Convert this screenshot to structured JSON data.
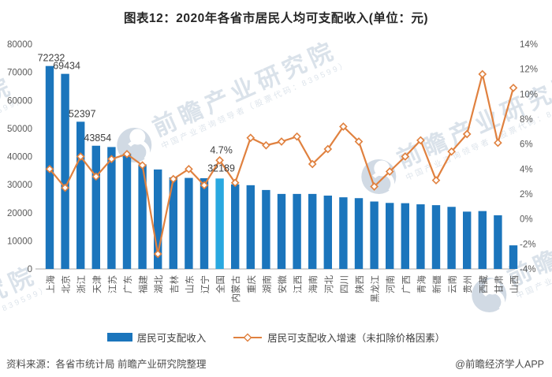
{
  "title": "图表12：2020年各省市居民人均可支配收入(单位：元)",
  "chart_data": {
    "type": "bar",
    "combo": "bar+line",
    "categories": [
      "上海",
      "北京",
      "浙江",
      "天津",
      "江苏",
      "广东",
      "福建",
      "湖北",
      "吉林",
      "山东",
      "辽宁",
      "全国",
      "内蒙古",
      "重庆",
      "湖南",
      "安徽",
      "江西",
      "海南",
      "河北",
      "四川",
      "陕西",
      "黑龙江",
      "河南",
      "广西",
      "青海",
      "新疆",
      "云南",
      "贵州",
      "西藏",
      "甘肃",
      "山西"
    ],
    "series": [
      {
        "name": "居民可支配收入",
        "type": "bar",
        "axis": "left",
        "values": [
          72232,
          69434,
          52397,
          43854,
          43390,
          41029,
          37202,
          35400,
          32600,
          32400,
          32300,
          32189,
          30100,
          29800,
          28100,
          26700,
          26700,
          26700,
          26100,
          25500,
          25200,
          24000,
          23500,
          23400,
          23000,
          22700,
          22100,
          20400,
          20600,
          19100,
          8400
        ]
      },
      {
        "name": "居民可支配收入增速（未扣除价格因素）",
        "type": "line",
        "axis": "right",
        "values": [
          4.0,
          2.5,
          5.0,
          3.4,
          4.8,
          5.2,
          4.3,
          -2.8,
          3.2,
          4.0,
          2.7,
          4.7,
          2.9,
          6.5,
          5.9,
          6.2,
          6.6,
          4.4,
          5.6,
          7.4,
          6.2,
          2.6,
          3.8,
          5.0,
          6.3,
          3.1,
          5.4,
          6.8,
          11.6,
          6.1,
          10.5
        ]
      }
    ],
    "highlight_category": "全国",
    "value_labels": [
      {
        "series": "bar",
        "index": 0
      },
      {
        "series": "bar",
        "index": 1
      },
      {
        "series": "bar",
        "index": 2
      },
      {
        "series": "bar",
        "index": 3
      },
      {
        "series": "line",
        "index": 11
      },
      {
        "series": "bar",
        "index": 11
      }
    ],
    "left_axis": {
      "min": 0,
      "max": 80000,
      "step": 10000
    },
    "right_axis": {
      "min": -4,
      "max": 14,
      "step": 2,
      "suffix": "%"
    },
    "grid": false,
    "legend_position": "bottom",
    "title": "图表12：2020年各省市居民人均可支配收入(单位：元)"
  },
  "legend": {
    "bar_label": "居民可支配收入",
    "line_label": "居民可支配收入增速（未扣除价格因素）"
  },
  "footer": {
    "source": "资料来源：各省市统计局 前瞻产业研究院整理",
    "credit": "@前瞻经济学人APP"
  },
  "watermark": {
    "text": "前瞻产业研究院",
    "subtext": "中国产业咨询领导者（股票代码：839599）"
  },
  "colors": {
    "bar": "#1b75bc",
    "bar_highlight": "#29a8e0",
    "line": "#e0813f",
    "axis_text": "#595959",
    "label_text": "#3f3f3f",
    "axis_line": "#a9a9a9"
  }
}
